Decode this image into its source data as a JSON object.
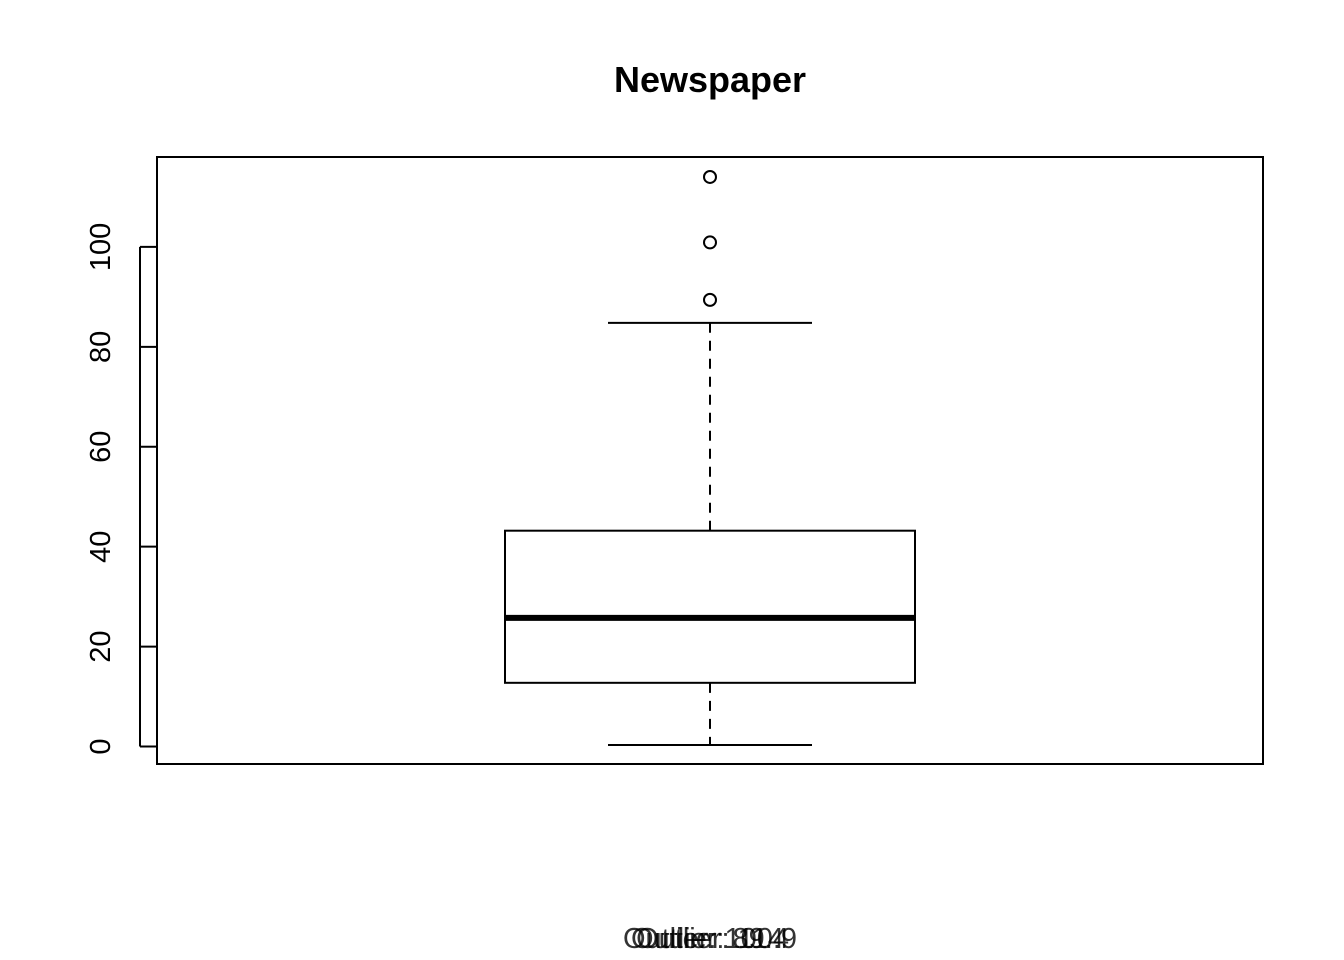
{
  "chart_data": {
    "type": "box",
    "title": "Newspaper",
    "xlabel": "",
    "ylabel": "",
    "ylim": [
      -3.5,
      118
    ],
    "yticks": [
      0,
      20,
      40,
      60,
      80,
      100
    ],
    "ytick_labels": [
      "0",
      "20",
      "40",
      "60",
      "80",
      "100"
    ],
    "box": {
      "whisker_low": 0.3,
      "q1": 12.75,
      "median": 25.75,
      "q3": 43.2,
      "whisker_high": 84.8
    },
    "outliers": [
      89.4,
      100.9,
      114
    ],
    "grid": false,
    "legend": "none",
    "outlier_captions": [
      "Outlier: 89.4",
      "Outlier: 100.9",
      "Outlier: 114"
    ]
  }
}
